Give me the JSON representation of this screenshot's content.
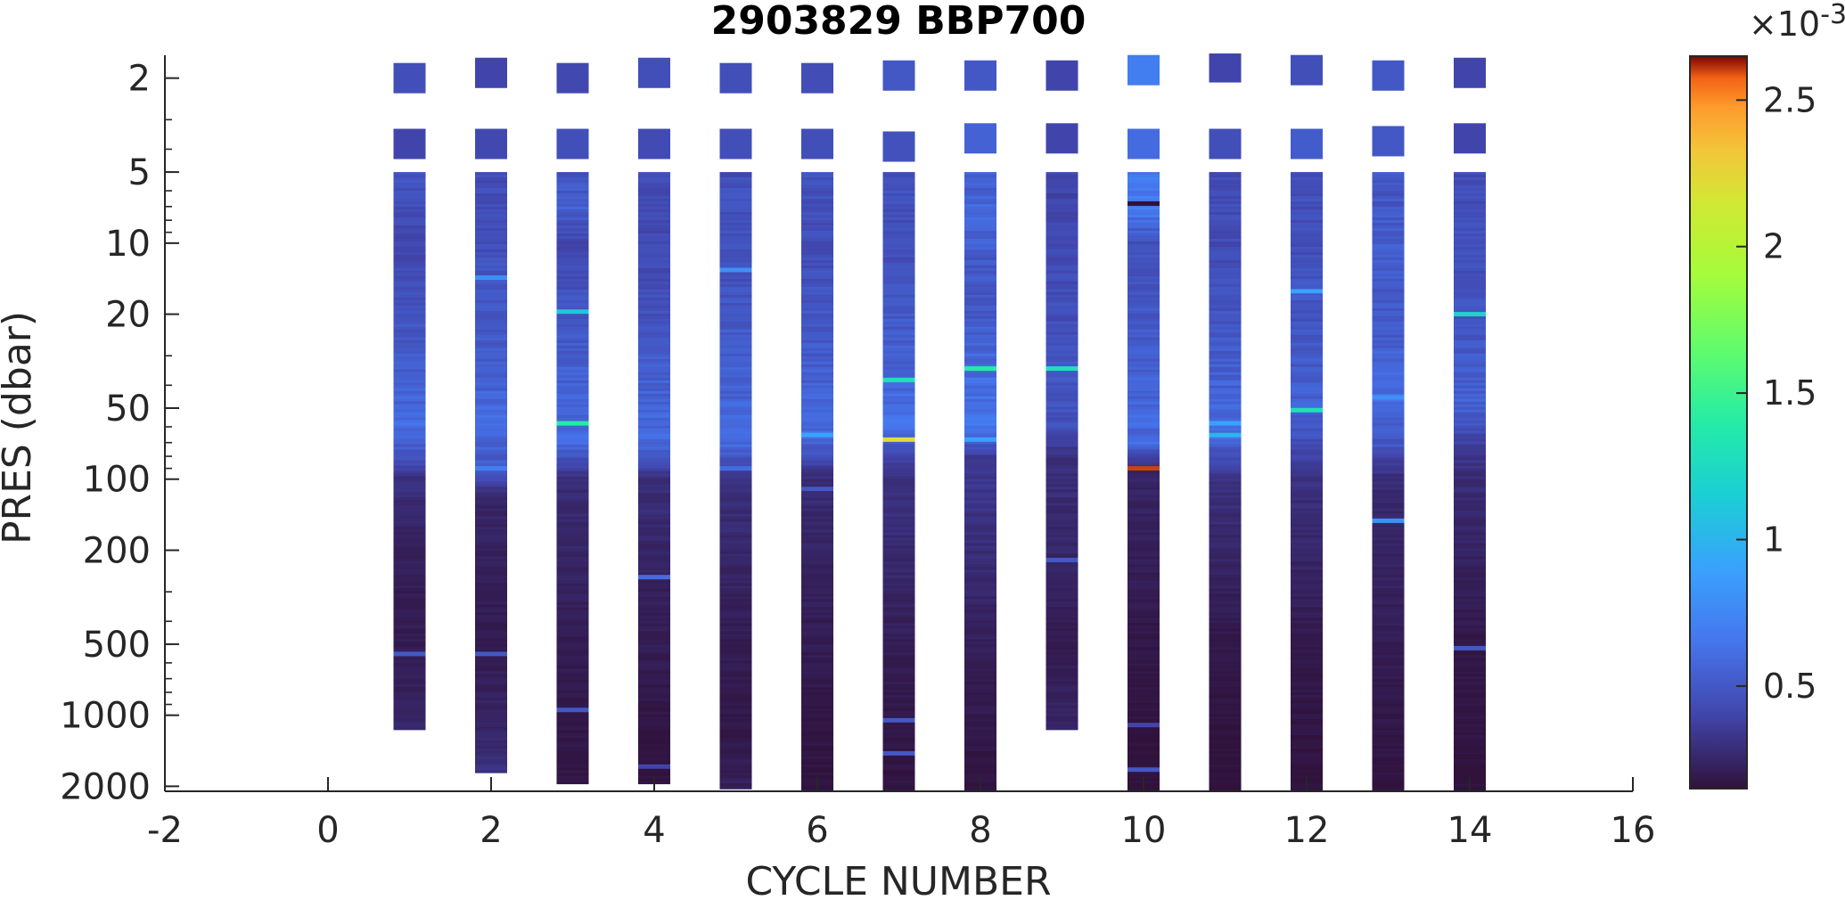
{
  "chart_data": {
    "type": "heatmap",
    "title": "2903829 BBP700",
    "xlabel": "CYCLE NUMBER",
    "ylabel": "PRES (dbar)",
    "xlim": [
      -2,
      16
    ],
    "x_ticks": [
      "-2",
      "0",
      "2",
      "4",
      "6",
      "8",
      "10",
      "12",
      "14",
      "16"
    ],
    "y_scale": "log",
    "ylim_reversed": [
      1.6,
      2100
    ],
    "y_ticks": [
      {
        "value": 2,
        "label": "2"
      },
      {
        "value": 5,
        "label": "5"
      },
      {
        "value": 10,
        "label": "10"
      },
      {
        "value": 20,
        "label": "20"
      },
      {
        "value": 50,
        "label": "50"
      },
      {
        "value": 100,
        "label": "100"
      },
      {
        "value": 200,
        "label": "200"
      },
      {
        "value": 500,
        "label": "500"
      },
      {
        "value": 1000,
        "label": "1000"
      },
      {
        "value": 2000,
        "label": "2000"
      }
    ],
    "colorbar": {
      "colormap": "turbo",
      "range": [
        0.00015,
        0.00265
      ],
      "exponent_label": "×10",
      "exponent_power": "-3",
      "ticks": [
        {
          "value": 0.0005,
          "label": "0.5"
        },
        {
          "value": 0.001,
          "label": "1"
        },
        {
          "value": 0.0015,
          "label": "1.5"
        },
        {
          "value": 0.002,
          "label": "2"
        },
        {
          "value": 0.0025,
          "label": "2.5"
        }
      ]
    },
    "profiles": [
      {
        "cycle": 1,
        "surface": [
          [
            2.0,
            0.00045
          ],
          [
            3.8,
            0.0004
          ]
        ],
        "column": [
          [
            5,
            0.00047
          ],
          [
            7,
            0.00045
          ],
          [
            10,
            0.0004
          ],
          [
            20,
            0.00048
          ],
          [
            40,
            0.00055
          ],
          [
            60,
            0.0006
          ],
          [
            80,
            0.00048
          ],
          [
            100,
            0.0003
          ],
          [
            200,
            0.00022
          ],
          [
            500,
            0.0002
          ],
          [
            1150,
            0.00025
          ]
        ],
        "spikes": [
          [
            550,
            0.0005
          ]
        ]
      },
      {
        "cycle": 2,
        "surface": [
          [
            1.9,
            0.0004
          ],
          [
            3.8,
            0.00042
          ]
        ],
        "column": [
          [
            5,
            0.00045
          ],
          [
            8,
            0.00043
          ],
          [
            12,
            0.00047
          ],
          [
            20,
            0.0005
          ],
          [
            40,
            0.00055
          ],
          [
            60,
            0.0006
          ],
          [
            90,
            0.0005
          ],
          [
            120,
            0.00025
          ],
          [
            500,
            0.0002
          ],
          [
            1200,
            0.00025
          ],
          [
            1750,
            0.0003
          ]
        ],
        "spikes": [
          [
            14,
            0.0008
          ],
          [
            90,
            0.0007
          ],
          [
            550,
            0.0005
          ]
        ]
      },
      {
        "cycle": 3,
        "surface": [
          [
            2.0,
            0.00042
          ],
          [
            3.8,
            0.00045
          ]
        ],
        "column": [
          [
            5,
            0.00045
          ],
          [
            7,
            0.00055
          ],
          [
            10,
            0.0004
          ],
          [
            20,
            0.0005
          ],
          [
            40,
            0.00055
          ],
          [
            70,
            0.0006
          ],
          [
            100,
            0.00028
          ],
          [
            500,
            0.0002
          ],
          [
            1200,
            0.00018
          ],
          [
            1950,
            0.00017
          ]
        ],
        "spikes": [
          [
            19.5,
            0.0011
          ],
          [
            58,
            0.0014
          ],
          [
            950,
            0.0005
          ]
        ]
      },
      {
        "cycle": 4,
        "surface": [
          [
            1.9,
            0.00045
          ],
          [
            3.8,
            0.00043
          ]
        ],
        "column": [
          [
            5,
            0.00044
          ],
          [
            10,
            0.00042
          ],
          [
            20,
            0.00047
          ],
          [
            40,
            0.00055
          ],
          [
            70,
            0.0006
          ],
          [
            100,
            0.0003
          ],
          [
            300,
            0.00022
          ],
          [
            600,
            0.0002
          ],
          [
            1200,
            0.00017
          ],
          [
            1950,
            0.00016
          ]
        ],
        "spikes": [
          [
            260,
            0.0006
          ],
          [
            1650,
            0.0004
          ]
        ]
      },
      {
        "cycle": 5,
        "surface": [
          [
            2.0,
            0.00045
          ],
          [
            3.8,
            0.00045
          ]
        ],
        "column": [
          [
            5,
            0.00045
          ],
          [
            8,
            0.00047
          ],
          [
            12,
            0.00045
          ],
          [
            20,
            0.0005
          ],
          [
            40,
            0.00055
          ],
          [
            70,
            0.0006
          ],
          [
            100,
            0.0003
          ],
          [
            500,
            0.0002
          ],
          [
            1200,
            0.00018
          ],
          [
            2050,
            0.00022
          ]
        ],
        "spikes": [
          [
            13,
            0.0008
          ],
          [
            90,
            0.0006
          ]
        ]
      },
      {
        "cycle": 6,
        "surface": [
          [
            2.0,
            0.00044
          ],
          [
            3.8,
            0.00045
          ]
        ],
        "column": [
          [
            5,
            0.00046
          ],
          [
            10,
            0.00045
          ],
          [
            20,
            0.00049
          ],
          [
            40,
            0.00055
          ],
          [
            65,
            0.0006
          ],
          [
            100,
            0.00028
          ],
          [
            500,
            0.0002
          ],
          [
            1200,
            0.00017
          ],
          [
            2100,
            0.00016
          ]
        ],
        "spikes": [
          [
            65,
            0.0009
          ],
          [
            110,
            0.0005
          ]
        ]
      },
      {
        "cycle": 7,
        "surface": [
          [
            1.95,
            0.0005
          ],
          [
            3.9,
            0.00046
          ]
        ],
        "column": [
          [
            5,
            0.00047
          ],
          [
            10,
            0.00045
          ],
          [
            20,
            0.0005
          ],
          [
            38,
            0.00057
          ],
          [
            60,
            0.00062
          ],
          [
            90,
            0.00032
          ],
          [
            500,
            0.00021
          ],
          [
            1200,
            0.00018
          ],
          [
            2100,
            0.00016
          ]
        ],
        "spikes": [
          [
            38,
            0.0013
          ],
          [
            68,
            0.0022
          ],
          [
            1050,
            0.0005
          ],
          [
            1450,
            0.0005
          ]
        ]
      },
      {
        "cycle": 8,
        "surface": [
          [
            1.95,
            0.0005
          ],
          [
            3.6,
            0.00055
          ]
        ],
        "column": [
          [
            5,
            0.00052
          ],
          [
            8,
            0.00058
          ],
          [
            12,
            0.0005
          ],
          [
            20,
            0.0005
          ],
          [
            34,
            0.0006
          ],
          [
            60,
            0.00065
          ],
          [
            80,
            0.00035
          ],
          [
            500,
            0.00022
          ],
          [
            1200,
            0.00018
          ],
          [
            2100,
            0.00016
          ]
        ],
        "spikes": [
          [
            34,
            0.0014
          ],
          [
            68,
            0.0009
          ]
        ]
      },
      {
        "cycle": 9,
        "surface": [
          [
            1.95,
            0.0004
          ],
          [
            3.6,
            0.0004
          ]
        ],
        "column": [
          [
            5,
            0.0004
          ],
          [
            10,
            0.00042
          ],
          [
            20,
            0.00045
          ],
          [
            34,
            0.0005
          ],
          [
            60,
            0.00045
          ],
          [
            80,
            0.0003
          ],
          [
            200,
            0.00025
          ],
          [
            500,
            0.0002
          ],
          [
            1150,
            0.00025
          ]
        ],
        "spikes": [
          [
            34,
            0.0013
          ],
          [
            220,
            0.0005
          ]
        ]
      },
      {
        "cycle": 10,
        "surface": [
          [
            1.85,
            0.0007
          ],
          [
            3.8,
            0.0006
          ]
        ],
        "column": [
          [
            5,
            0.00065
          ],
          [
            7,
            0.0007
          ],
          [
            10,
            0.00045
          ],
          [
            20,
            0.0005
          ],
          [
            40,
            0.00055
          ],
          [
            70,
            0.0006
          ],
          [
            90,
            0.00025
          ],
          [
            500,
            0.00018
          ],
          [
            1200,
            0.00016
          ],
          [
            2100,
            0.00015
          ]
        ],
        "spikes": [
          [
            6.8,
            0.0001
          ],
          [
            90,
            0.0026
          ],
          [
            1100,
            0.0004
          ],
          [
            1700,
            0.0005
          ]
        ]
      },
      {
        "cycle": 11,
        "surface": [
          [
            1.8,
            0.0004
          ],
          [
            3.8,
            0.00045
          ]
        ],
        "column": [
          [
            5,
            0.00045
          ],
          [
            10,
            0.00043
          ],
          [
            20,
            0.00048
          ],
          [
            40,
            0.00055
          ],
          [
            65,
            0.0006
          ],
          [
            100,
            0.0003
          ],
          [
            500,
            0.00018
          ],
          [
            1200,
            0.00016
          ],
          [
            2100,
            0.00015
          ]
        ],
        "spikes": [
          [
            58,
            0.0009
          ],
          [
            65,
            0.001
          ]
        ]
      },
      {
        "cycle": 12,
        "surface": [
          [
            1.85,
            0.00045
          ],
          [
            3.8,
            0.00052
          ]
        ],
        "column": [
          [
            5,
            0.00047
          ],
          [
            10,
            0.00044
          ],
          [
            16,
            0.0005
          ],
          [
            25,
            0.00048
          ],
          [
            50,
            0.00055
          ],
          [
            80,
            0.0004
          ],
          [
            100,
            0.0003
          ],
          [
            500,
            0.00019
          ],
          [
            1200,
            0.00017
          ],
          [
            2100,
            0.00015
          ]
        ],
        "spikes": [
          [
            16,
            0.0009
          ],
          [
            51,
            0.0013
          ]
        ]
      },
      {
        "cycle": 13,
        "surface": [
          [
            1.95,
            0.0005
          ],
          [
            3.7,
            0.0005
          ]
        ],
        "column": [
          [
            5,
            0.00048
          ],
          [
            10,
            0.00052
          ],
          [
            20,
            0.0005
          ],
          [
            45,
            0.0006
          ],
          [
            70,
            0.0005
          ],
          [
            100,
            0.00028
          ],
          [
            500,
            0.0002
          ],
          [
            1200,
            0.00018
          ],
          [
            2100,
            0.00016
          ]
        ],
        "spikes": [
          [
            45,
            0.0008
          ],
          [
            150,
            0.0008
          ]
        ]
      },
      {
        "cycle": 14,
        "surface": [
          [
            1.9,
            0.0004
          ],
          [
            3.6,
            0.0004
          ]
        ],
        "column": [
          [
            5,
            0.00045
          ],
          [
            10,
            0.00045
          ],
          [
            20,
            0.00048
          ],
          [
            50,
            0.00055
          ],
          [
            75,
            0.00035
          ],
          [
            100,
            0.00028
          ],
          [
            500,
            0.00018
          ],
          [
            1200,
            0.00017
          ],
          [
            2100,
            0.00015
          ]
        ],
        "spikes": [
          [
            20,
            0.0012
          ],
          [
            520,
            0.0005
          ]
        ]
      }
    ]
  }
}
